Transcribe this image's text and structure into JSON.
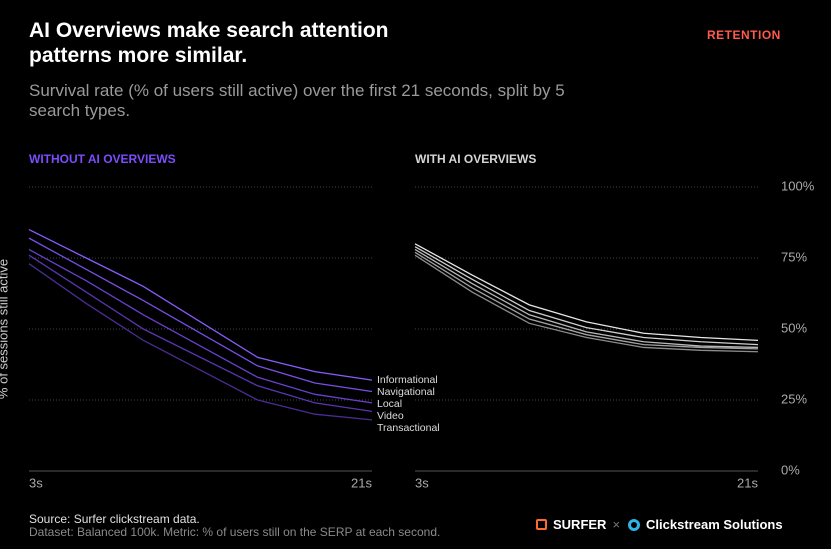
{
  "title": "AI Overviews make search attention patterns more similar.",
  "tag": "RETENTION",
  "subtitle": "Survival rate (% of users still active) over the first 21 seconds, split by 5 search types.",
  "source": "Source: Surfer clickstream data.",
  "note": "Dataset: Balanced 100k. Metric: % of users still on the SERP at each second.",
  "brand_1": "SURFER",
  "separator": "×",
  "brand_2": "Clickstream Solutions",
  "chart_data": [
    {
      "type": "line",
      "title": "WITHOUT AI OVERVIEWS",
      "title_color": "#7b4dff",
      "ylabel": "% of sessions still active",
      "x": [
        3,
        6,
        9,
        15,
        18,
        21
      ],
      "xlim": [
        3,
        21
      ],
      "xticks": [
        {
          "value": 3,
          "label": "3s"
        },
        {
          "value": 21,
          "label": "21s"
        }
      ],
      "ylim": [
        0,
        100
      ],
      "yticks": [
        0,
        25,
        50,
        75,
        100
      ],
      "grid": true,
      "series": [
        {
          "name": "Informational",
          "color": "#8a5cff",
          "values": [
            85,
            75,
            65,
            40,
            35,
            32
          ]
        },
        {
          "name": "Navigational",
          "color": "#7a4ee6",
          "values": [
            82,
            71,
            60,
            37,
            31,
            28
          ]
        },
        {
          "name": "Local",
          "color": "#6a40cc",
          "values": [
            78,
            67,
            55,
            33,
            27,
            24
          ]
        },
        {
          "name": "Video",
          "color": "#5a35b0",
          "values": [
            76,
            63,
            50,
            30,
            24,
            21
          ]
        },
        {
          "name": "Transactional",
          "color": "#4a2c94",
          "values": [
            73,
            59,
            46,
            25,
            20,
            18
          ]
        }
      ]
    },
    {
      "type": "line",
      "title": "WITH AI OVERVIEWS",
      "title_color": "#d6d6d6",
      "x": [
        3,
        6,
        9,
        12,
        15,
        18,
        21
      ],
      "xlim": [
        3,
        21
      ],
      "xticks": [
        {
          "value": 3,
          "label": "3s"
        },
        {
          "value": 21,
          "label": "21s"
        }
      ],
      "ylim": [
        0,
        100
      ],
      "yticks": [
        {
          "value": 0,
          "label": "0%"
        },
        {
          "value": 25,
          "label": "25%"
        },
        {
          "value": 50,
          "label": "50%"
        },
        {
          "value": 75,
          "label": "75%"
        },
        {
          "value": 100,
          "label": "100%"
        }
      ],
      "grid": true,
      "series": [
        {
          "color": "#e6e6e6",
          "values": [
            80,
            69,
            58.5,
            52.5,
            48.5,
            47,
            46
          ]
        },
        {
          "color": "#cfcfcf",
          "values": [
            79,
            67.5,
            56.5,
            50.5,
            47,
            45.5,
            44.5
          ]
        },
        {
          "color": "#b8b8b8",
          "values": [
            78,
            66,
            55,
            49,
            45.5,
            44,
            43.5
          ]
        },
        {
          "color": "#a2a2a2",
          "values": [
            77,
            64.5,
            53.5,
            48,
            44.5,
            43.5,
            43
          ]
        },
        {
          "color": "#8c8c8c",
          "values": [
            76,
            63,
            52,
            47,
            43.5,
            42.5,
            42
          ]
        }
      ]
    }
  ]
}
